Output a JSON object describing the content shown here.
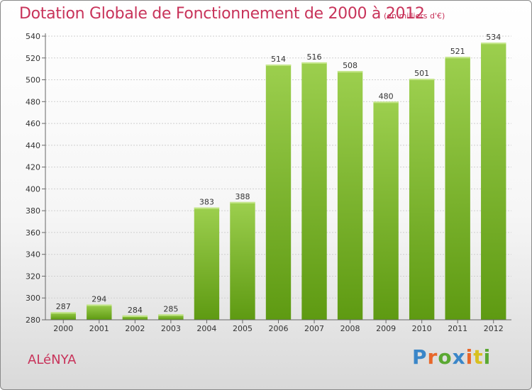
{
  "chart_data": {
    "type": "bar",
    "title": "Dotation Globale de Fonctionnement de 2000 à 2012",
    "subtitle": "(en milliers d'€)",
    "categories": [
      "2000",
      "2001",
      "2002",
      "2003",
      "2004",
      "2005",
      "2006",
      "2007",
      "2008",
      "2009",
      "2010",
      "2011",
      "2012"
    ],
    "values": [
      287,
      294,
      284,
      285,
      383,
      388,
      514,
      516,
      508,
      480,
      501,
      521,
      534
    ],
    "ylim": [
      280,
      540
    ],
    "yticks": [
      280,
      300,
      320,
      340,
      360,
      380,
      400,
      420,
      440,
      460,
      480,
      500,
      520,
      540
    ],
    "grid": true,
    "colors": {
      "bar_top": "#9ccf4e",
      "bar_bottom": "#5e9a12",
      "text": "#c8335a"
    }
  },
  "commune": "ALéNYA",
  "logo": {
    "letters": [
      "P",
      "r",
      "o",
      "x",
      "i",
      "t",
      "i"
    ],
    "colors": [
      "#3a86c8",
      "#e8672a",
      "#5aa832",
      "#3a86c8",
      "#e8672a",
      "#d8c020",
      "#5aa832"
    ]
  }
}
